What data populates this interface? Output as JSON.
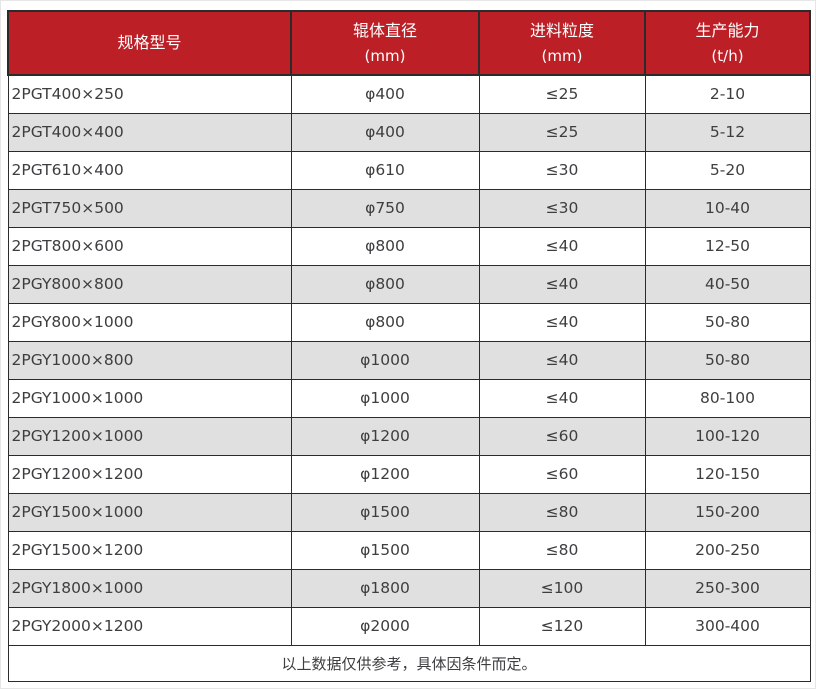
{
  "table": {
    "columns": [
      {
        "title": "规格型号",
        "unit": ""
      },
      {
        "title": "辊体直径",
        "unit": "(mm)"
      },
      {
        "title": "进料粒度",
        "unit": "(mm)"
      },
      {
        "title": "生产能力",
        "unit": "(t/h)"
      }
    ],
    "rows": [
      [
        "2PGT400×250",
        "φ400",
        "≤25",
        "2-10"
      ],
      [
        "2PGT400×400",
        "φ400",
        "≤25",
        "5-12"
      ],
      [
        "2PGT610×400",
        "φ610",
        "≤30",
        "5-20"
      ],
      [
        "2PGT750×500",
        "φ750",
        "≤30",
        "10-40"
      ],
      [
        "2PGT800×600",
        "φ800",
        "≤40",
        "12-50"
      ],
      [
        "2PGY800×800",
        "φ800",
        "≤40",
        "40-50"
      ],
      [
        "2PGY800×1000",
        "φ800",
        "≤40",
        "50-80"
      ],
      [
        "2PGY1000×800",
        "φ1000",
        "≤40",
        "50-80"
      ],
      [
        "2PGY1000×1000",
        "φ1000",
        "≤40",
        "80-100"
      ],
      [
        "2PGY1200×1000",
        "φ1200",
        "≤60",
        "100-120"
      ],
      [
        "2PGY1200×1200",
        "φ1200",
        "≤60",
        "120-150"
      ],
      [
        "2PGY1500×1000",
        "φ1500",
        "≤80",
        "150-200"
      ],
      [
        "2PGY1500×1200",
        "φ1500",
        "≤80",
        "200-250"
      ],
      [
        "2PGY1800×1000",
        "φ1800",
        "≤100",
        "250-300"
      ],
      [
        "2PGY2000×1200",
        "φ2000",
        "≤120",
        "300-400"
      ]
    ],
    "footnote": "以上数据仅供参考，具体因条件而定。"
  },
  "colors": {
    "header_bg": "#BC2026",
    "header_text": "#FFFFFF",
    "row_alt_bg": "#E0E0E0",
    "border": "#2B2B2B",
    "body_text": "#3E3E40"
  }
}
